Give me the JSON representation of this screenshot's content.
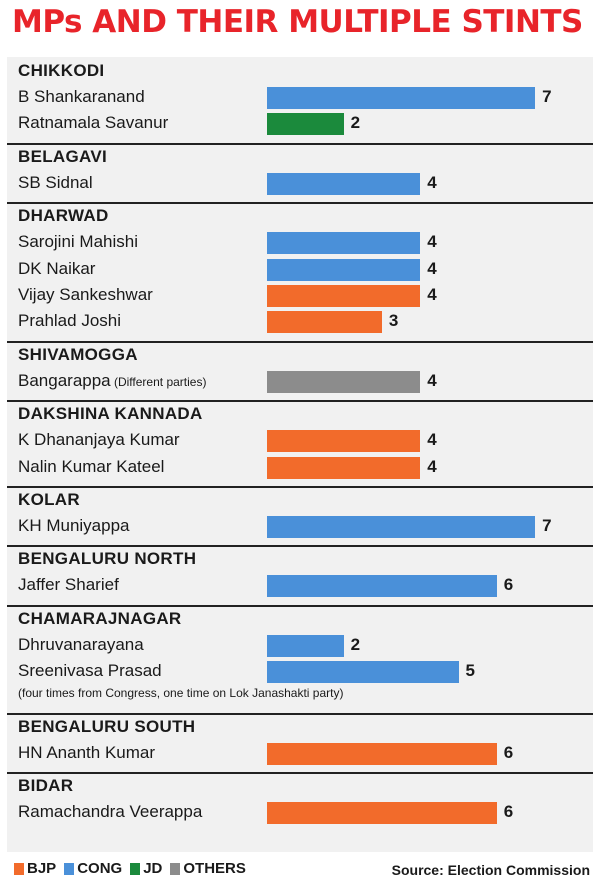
{
  "title": "MPs AND THEIR MULTIPLE STINTS",
  "colors": {
    "BJP": "#f26b2b",
    "CONG": "#4a90d9",
    "JD": "#1b8a3c",
    "OTHERS": "#8c8c8c"
  },
  "legend": [
    {
      "key": "BJP",
      "label": "BJP"
    },
    {
      "key": "CONG",
      "label": "CONG"
    },
    {
      "key": "JD",
      "label": "JD"
    },
    {
      "key": "OTHERS",
      "label": "OTHERS"
    }
  ],
  "source": "Source: Election Commission",
  "chart_data": {
    "type": "bar",
    "orientation": "horizontal",
    "title": "MPs AND THEIR MULTIPLE STINTS",
    "xlim": [
      0,
      7
    ],
    "groups": [
      {
        "name": "CHIKKODI",
        "items": [
          {
            "name": "B Shankaranand",
            "value": 7,
            "party": "CONG"
          },
          {
            "name": "Ratnamala Savanur",
            "value": 2,
            "party": "JD"
          }
        ]
      },
      {
        "name": "BELAGAVI",
        "items": [
          {
            "name": "SB Sidnal",
            "value": 4,
            "party": "CONG"
          }
        ]
      },
      {
        "name": "DHARWAD",
        "items": [
          {
            "name": "Sarojini Mahishi",
            "value": 4,
            "party": "CONG"
          },
          {
            "name": "DK Naikar",
            "value": 4,
            "party": "CONG"
          },
          {
            "name": "Vijay Sankeshwar",
            "value": 4,
            "party": "BJP"
          },
          {
            "name": "Prahlad Joshi",
            "value": 3,
            "party": "BJP"
          }
        ]
      },
      {
        "name": "SHIVAMOGGA",
        "items": [
          {
            "name": "Bangarappa",
            "note": "(Different parties)",
            "value": 4,
            "party": "OTHERS"
          }
        ]
      },
      {
        "name": "DAKSHINA KANNADA",
        "items": [
          {
            "name": "K Dhananjaya Kumar",
            "value": 4,
            "party": "BJP"
          },
          {
            "name": "Nalin Kumar Kateel",
            "value": 4,
            "party": "BJP"
          }
        ]
      },
      {
        "name": "KOLAR",
        "items": [
          {
            "name": "KH Muniyappa",
            "value": 7,
            "party": "CONG"
          }
        ]
      },
      {
        "name": "BENGALURU NORTH",
        "items": [
          {
            "name": "Jaffer Sharief",
            "value": 6,
            "party": "CONG"
          }
        ]
      },
      {
        "name": "CHAMARAJNAGAR",
        "items": [
          {
            "name": "Dhruvanarayana",
            "value": 2,
            "party": "CONG"
          },
          {
            "name": "Sreenivasa Prasad",
            "value": 5,
            "party": "CONG"
          }
        ],
        "footnote": "(four times from Congress, one time on Lok Janashakti party)"
      },
      {
        "name": "BENGALURU SOUTH",
        "items": [
          {
            "name": "HN Ananth Kumar",
            "value": 6,
            "party": "BJP"
          }
        ]
      },
      {
        "name": "BIDAR",
        "items": [
          {
            "name": "Ramachandra Veerappa",
            "value": 6,
            "party": "BJP"
          }
        ]
      }
    ]
  }
}
